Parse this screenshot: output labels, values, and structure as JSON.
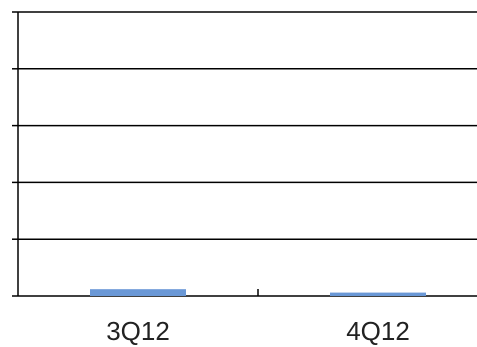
{
  "chart_data": {
    "type": "bar",
    "categories": [
      "3Q12",
      "4Q12"
    ],
    "values": [
      0.12,
      0.06
    ],
    "ylim": [
      0,
      5
    ],
    "yticks": [
      0,
      1,
      2,
      3,
      4,
      5
    ],
    "grid": true,
    "title": "",
    "xlabel": "",
    "ylabel": "",
    "colors": {
      "bar": "#6a98d6",
      "grid": "#000000",
      "axis": "#000000",
      "text": "#222222"
    }
  }
}
